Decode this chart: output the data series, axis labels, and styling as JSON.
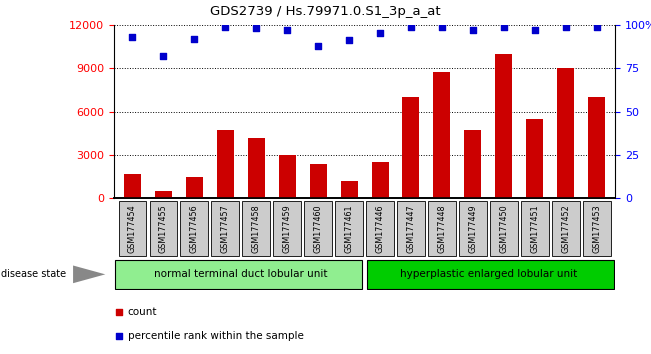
{
  "title": "GDS2739 / Hs.79971.0.S1_3p_a_at",
  "samples": [
    "GSM177454",
    "GSM177455",
    "GSM177456",
    "GSM177457",
    "GSM177458",
    "GSM177459",
    "GSM177460",
    "GSM177461",
    "GSM177446",
    "GSM177447",
    "GSM177448",
    "GSM177449",
    "GSM177450",
    "GSM177451",
    "GSM177452",
    "GSM177453"
  ],
  "counts": [
    1700,
    500,
    1500,
    4700,
    4200,
    3000,
    2400,
    1200,
    2500,
    7000,
    8700,
    4700,
    10000,
    5500,
    9000,
    7000
  ],
  "percentiles": [
    93,
    82,
    92,
    99,
    98,
    97,
    88,
    91,
    95,
    99,
    99,
    97,
    99,
    97,
    99,
    99
  ],
  "bar_color": "#cc0000",
  "dot_color": "#0000cc",
  "group1_label": "normal terminal duct lobular unit",
  "group2_label": "hyperplastic enlarged lobular unit",
  "group1_count": 8,
  "group2_count": 8,
  "disease_state_label": "disease state",
  "legend_count_label": "count",
  "legend_percentile_label": "percentile rank within the sample",
  "ylim_left": [
    0,
    12000
  ],
  "ylim_right": [
    0,
    100
  ],
  "yticks_left": [
    0,
    3000,
    6000,
    9000,
    12000
  ],
  "yticks_right": [
    0,
    25,
    50,
    75,
    100
  ],
  "group1_color": "#90ee90",
  "group2_color": "#00cc00",
  "tick_bg_color": "#cccccc",
  "background_color": "#ffffff"
}
